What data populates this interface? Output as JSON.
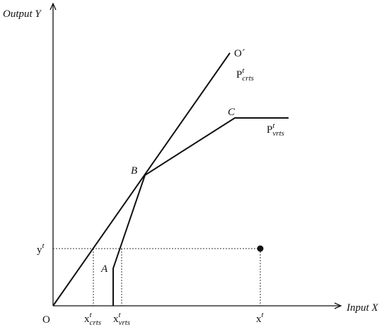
{
  "axes": {
    "y_label": "Output Y",
    "x_label": "Input X",
    "origin": "O"
  },
  "points": {
    "o_prime": "O´",
    "b": "B",
    "c": "C",
    "a": "A"
  },
  "frontiers": {
    "crts": {
      "base": "P",
      "sup": "t",
      "sub": "crts"
    },
    "vrts": {
      "base": "P",
      "sup": "t",
      "sub": "vrts"
    }
  },
  "levels": {
    "y": {
      "base": "y",
      "sup": "t"
    },
    "x_crts": {
      "base": "x",
      "sup": "t",
      "sub": "crts"
    },
    "x_vrts": {
      "base": "x",
      "sup": "t",
      "sub": "vrts"
    },
    "x": {
      "base": "x",
      "sup": "t"
    }
  }
}
